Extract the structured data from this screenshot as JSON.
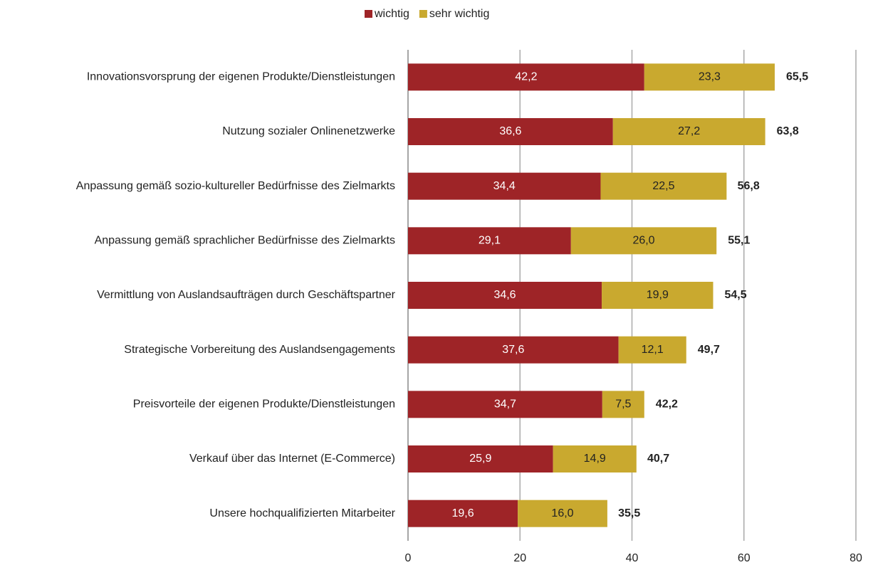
{
  "chart_data": {
    "type": "stacked-bar-horizontal",
    "categories": [
      "Innovationsvorsprung der eigenen Produkte/Dienstleistungen",
      "Nutzung sozialer Onlinenetzwerke",
      "Anpassung gemäß sozio-kultureller Bedürfnisse des Zielmarkts",
      "Anpassung gemäß sprachlicher Bedürfnisse des Zielmarkts",
      "Vermittlung von Auslandsaufträgen durch Geschäftspartner",
      "Strategische Vorbereitung des Auslandsengagements",
      "Preisvorteile der eigenen Produkte/Dienstleistungen",
      "Verkauf über das Internet (E-Commerce)",
      "Unsere hochqualifizierten Mitarbeiter"
    ],
    "series": [
      {
        "name": "wichtig",
        "color": "#9e2427",
        "values": [
          42.2,
          36.6,
          34.4,
          29.1,
          34.6,
          37.6,
          34.7,
          25.9,
          19.6
        ],
        "value_labels": [
          "42,2",
          "36,6",
          "34,4",
          "29,1",
          "34,6",
          "37,6",
          "34,7",
          "25,9",
          "19,6"
        ]
      },
      {
        "name": "sehr wichtig",
        "color": "#c9a92f",
        "values": [
          23.3,
          27.2,
          22.5,
          26.0,
          19.9,
          12.1,
          7.5,
          14.9,
          16.0
        ],
        "value_labels": [
          "23,3",
          "27,2",
          "22,5",
          "26,0",
          "19,9",
          "12,1",
          "7,5",
          "14,9",
          "16,0"
        ]
      }
    ],
    "totals": [
      65.5,
      63.8,
      56.8,
      55.1,
      54.5,
      49.7,
      42.2,
      40.7,
      35.5
    ],
    "total_labels": [
      "65,5",
      "63,8",
      "56,8",
      "55,1",
      "54,5",
      "49,7",
      "42,2",
      "40,7",
      "35,5"
    ],
    "xlim": [
      0,
      80
    ],
    "xticks": [
      0,
      20,
      40,
      60,
      80
    ],
    "grid": true,
    "legend": "top"
  }
}
